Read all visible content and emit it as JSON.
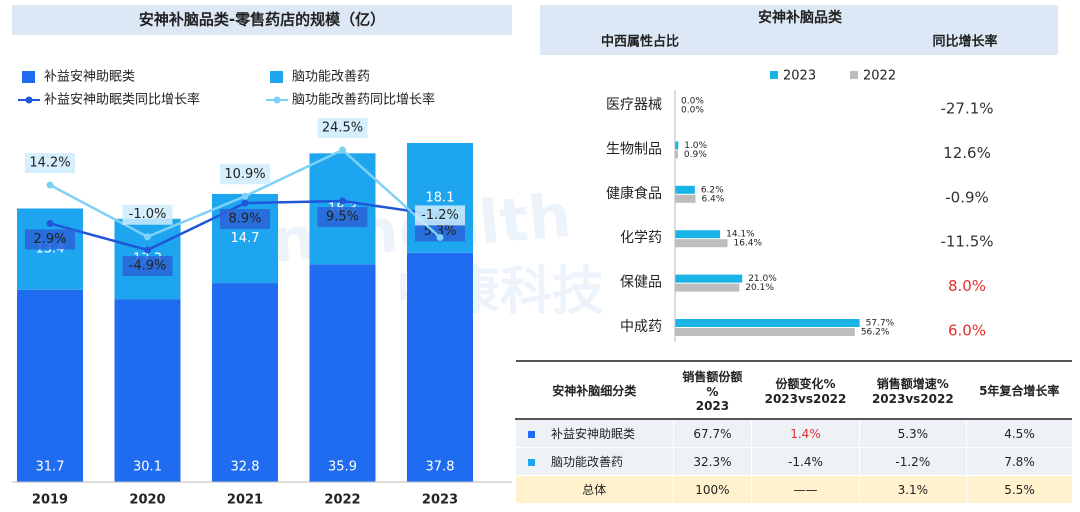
{
  "chart_data": [
    {
      "type": "stacked-bar-line",
      "title": "安神补脑品类-零售药店的规模（亿）",
      "categories": [
        "2019",
        "2020",
        "2021",
        "2022",
        "2023"
      ],
      "series": [
        {
          "name": "补益安神助眠类",
          "color": "#1f6cf0",
          "values": [
            31.7,
            30.1,
            32.8,
            35.9,
            37.8
          ]
        },
        {
          "name": "脑功能改善药",
          "color": "#1ea5f0",
          "values": [
            13.4,
            13.3,
            14.7,
            18.3,
            18.1
          ]
        },
        {
          "name": "补益安神助眠类同比增长率",
          "type": "line",
          "color": "#2056d8",
          "values": [
            2.9,
            -4.9,
            8.9,
            9.5,
            5.3
          ],
          "value_labels": [
            "2.9%",
            "-4.9%",
            "8.9%",
            "9.5%",
            "5.3%"
          ]
        },
        {
          "name": "脑功能改善药同比增长率",
          "type": "line",
          "color": "#7fd0f5",
          "values": [
            14.2,
            -1.0,
            10.9,
            24.5,
            -1.2
          ],
          "value_labels": [
            "14.2%",
            "-1.0%",
            "10.9%",
            "24.5%",
            "-1.2%"
          ]
        }
      ]
    },
    {
      "type": "hbar",
      "title": "安神补脑品类",
      "subtitle": "中西属性占比",
      "categories": [
        "医疗器械",
        "生物制品",
        "健康食品",
        "化学药",
        "保健品",
        "中成药"
      ],
      "series": [
        {
          "name": "2023",
          "color": "#19b3e6",
          "values": [
            0.0,
            1.0,
            6.2,
            14.1,
            21.0,
            57.7
          ],
          "value_labels": [
            "0.0%",
            "1.0%",
            "6.2%",
            "14.1%",
            "21.0%",
            "57.7%"
          ]
        },
        {
          "name": "2022",
          "color": "#bdbdbd",
          "values": [
            0.0,
            0.9,
            6.4,
            16.4,
            20.1,
            56.2
          ],
          "value_labels": [
            "0.0%",
            "0.9%",
            "6.4%",
            "16.4%",
            "20.1%",
            "56.2%"
          ]
        }
      ],
      "growth": {
        "title": "同比增长率",
        "values": [
          -27.1,
          12.6,
          -0.9,
          -11.5,
          8.0,
          6.0
        ],
        "value_labels": [
          "-27.1%",
          "12.6%",
          "-0.9%",
          "-11.5%",
          "8.0%",
          "6.0%"
        ],
        "colors": [
          "#333333",
          "#333333",
          "#333333",
          "#333333",
          "#e03030",
          "#e03030"
        ]
      }
    }
  ],
  "table": {
    "header": [
      "安神补脑细分类",
      "销售额份额\n%\n2023",
      "份额变化%\n2023vs2022",
      "销售额增速%\n2023vs2022",
      "5年复合增长率"
    ],
    "rows": [
      [
        "补益安神助眠类",
        "67.7%",
        "1.4%",
        "5.3%",
        "4.5%"
      ],
      [
        "脑功能改善药",
        "32.3%",
        "-1.4%",
        "-1.2%",
        "7.8%"
      ],
      [
        "总体",
        "100%",
        "——",
        "3.1%",
        "5.5%"
      ]
    ]
  },
  "watermark": [
    "Sinohealth",
    "中康科技"
  ]
}
